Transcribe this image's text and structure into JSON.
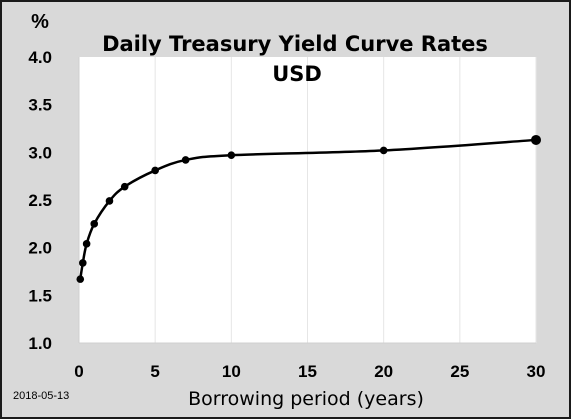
{
  "chart_data": {
    "type": "line",
    "title": "Daily Treasury Yield Curve Rates",
    "subtitle": "USD",
    "xlabel": "Borrowing period (years)",
    "ylabel": "%",
    "date": "2018-05-13",
    "xlim": [
      0,
      30
    ],
    "ylim": [
      1.0,
      4.0
    ],
    "x_ticks": [
      0,
      5,
      10,
      15,
      20,
      25,
      30
    ],
    "y_ticks": [
      "1.0",
      "1.5",
      "2.0",
      "2.5",
      "3.0",
      "3.5",
      "4.0"
    ],
    "grid": "vertical",
    "series": [
      {
        "x": [
          0.0833,
          0.25,
          0.5,
          1,
          2,
          3,
          5,
          7,
          10,
          20,
          30
        ],
        "y": [
          1.67,
          1.84,
          2.04,
          2.25,
          2.49,
          2.64,
          2.81,
          2.92,
          2.97,
          3.02,
          3.13
        ]
      }
    ],
    "colors": {
      "line": "#000000",
      "plot_bg": "#ffffff",
      "frame_bg": "#d9d9d9",
      "grid": "#e6e6e6"
    }
  }
}
